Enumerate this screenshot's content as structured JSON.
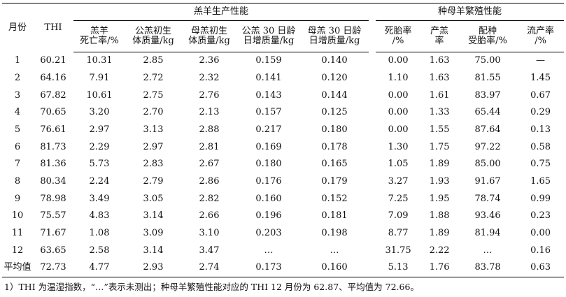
{
  "table": {
    "group_headers": {
      "production": "羔羊生产性能",
      "reproduction": "种母羊繁殖性能"
    },
    "columns": {
      "month": "月份",
      "thi": "THI",
      "lamb_death": [
        "羔羊",
        "死亡率/%"
      ],
      "ram_birth_weight": [
        "公羔初生",
        "体质量/kg"
      ],
      "ewe_birth_weight": [
        "母羔初生",
        "体质量/kg"
      ],
      "ram_30d_gain": [
        "公羔 30 日龄",
        "日增质量/kg"
      ],
      "ewe_30d_gain": [
        "母羔 30 日龄",
        "日增质量/kg"
      ],
      "stillbirth": [
        "死胎率",
        "/%"
      ],
      "lambing": [
        "产羔",
        "率"
      ],
      "conception": [
        "配种",
        "受胎率/%"
      ],
      "abortion": [
        "流产率",
        "/%"
      ]
    },
    "rows": [
      [
        "1",
        "60.21",
        "10.31",
        "2.85",
        "2.36",
        "0.159",
        "0.140",
        "0.00",
        "1.63",
        "75.00",
        "—"
      ],
      [
        "2",
        "64.16",
        "7.91",
        "2.72",
        "2.32",
        "0.141",
        "0.120",
        "1.10",
        "1.63",
        "81.55",
        "1.45"
      ],
      [
        "3",
        "67.82",
        "10.61",
        "2.75",
        "2.76",
        "0.143",
        "0.144",
        "0.00",
        "1.61",
        "83.97",
        "0.67"
      ],
      [
        "4",
        "70.65",
        "3.20",
        "2.70",
        "2.13",
        "0.157",
        "0.125",
        "0.00",
        "1.33",
        "65.44",
        "0.29"
      ],
      [
        "5",
        "76.61",
        "2.97",
        "3.13",
        "2.88",
        "0.217",
        "0.180",
        "0.00",
        "1.55",
        "87.64",
        "0.13"
      ],
      [
        "6",
        "81.73",
        "2.29",
        "2.97",
        "2.81",
        "0.169",
        "0.178",
        "1.30",
        "1.75",
        "97.22",
        "0.58"
      ],
      [
        "7",
        "81.36",
        "5.73",
        "2.83",
        "2.67",
        "0.180",
        "0.165",
        "1.05",
        "1.89",
        "85.00",
        "0.75"
      ],
      [
        "8",
        "80.34",
        "2.24",
        "2.79",
        "2.86",
        "0.176",
        "0.179",
        "3.27",
        "1.93",
        "91.67",
        "1.65"
      ],
      [
        "9",
        "78.98",
        "3.49",
        "3.05",
        "2.82",
        "0.160",
        "0.152",
        "7.25",
        "1.95",
        "78.74",
        "0.99"
      ],
      [
        "10",
        "75.57",
        "4.83",
        "3.14",
        "2.66",
        "0.196",
        "0.181",
        "7.09",
        "1.88",
        "93.46",
        "0.23"
      ],
      [
        "11",
        "71.67",
        "1.08",
        "3.09",
        "3.10",
        "0.203",
        "0.198",
        "8.77",
        "1.89",
        "81.94",
        "0.00"
      ],
      [
        "12",
        "63.65",
        "2.58",
        "3.14",
        "3.47",
        "…",
        "…",
        "31.75",
        "2.22",
        "…",
        "0.16"
      ],
      [
        "平均值",
        "72.73",
        "4.77",
        "2.93",
        "2.74",
        "0.173",
        "0.160",
        "5.13",
        "1.76",
        "83.78",
        "0.63"
      ]
    ]
  },
  "footnote": "1）THI 为温湿指数，“…”表示未测出；种母羊繁殖性能对应的 THI 12 月份为 62.87、平均值为 72.66。"
}
